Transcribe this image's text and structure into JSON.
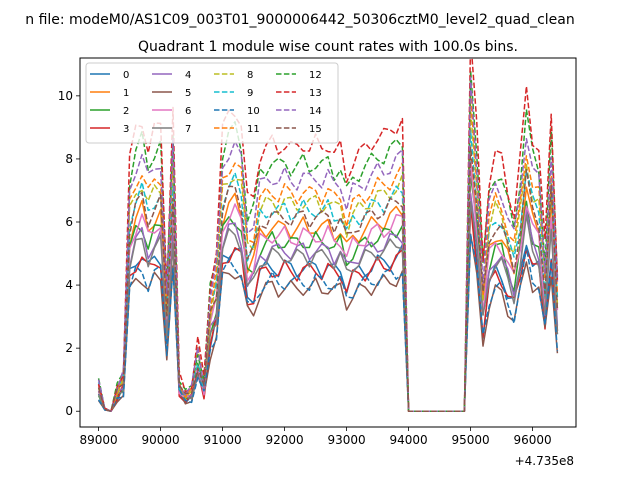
{
  "figure": {
    "suptitle": "n file: modeM0/AS1C09_003T01_9000006442_50306cztM0_level2_quad_clean",
    "offset_text": "+4.735e8"
  },
  "chart_data": {
    "type": "line",
    "title": "Quadrant 1 module wise count rates with 100.0s bins.",
    "xlabel": "",
    "ylabel": "",
    "xlim": [
      88700,
      96700
    ],
    "ylim": [
      -0.5,
      11.2
    ],
    "x_offset": 473500000,
    "x_ticks": [
      89000,
      90000,
      91000,
      92000,
      93000,
      94000,
      95000,
      96000
    ],
    "x_tick_labels": [
      "89000",
      "90000",
      "91000",
      "92000",
      "93000",
      "94000",
      "95000",
      "96000"
    ],
    "y_ticks": [
      0,
      2,
      4,
      6,
      8,
      10
    ],
    "y_tick_labels": [
      "0",
      "2",
      "4",
      "6",
      "8",
      "10"
    ],
    "grid": false,
    "legend_placement": "top-left",
    "legend_columns": 4,
    "x": [
      89000,
      89100,
      89200,
      89300,
      89400,
      89500,
      89600,
      89700,
      89800,
      89900,
      90000,
      90100,
      90200,
      90300,
      90400,
      90500,
      90600,
      90700,
      90800,
      90900,
      91000,
      91100,
      91200,
      91300,
      91400,
      91500,
      91600,
      91700,
      91800,
      91900,
      92000,
      92100,
      92200,
      92300,
      92400,
      92500,
      92600,
      92700,
      92800,
      92900,
      93000,
      93100,
      93200,
      93300,
      93400,
      93500,
      93600,
      93700,
      93800,
      93900,
      94000,
      94100,
      94200,
      94300,
      94400,
      94500,
      94600,
      94700,
      94800,
      94900,
      95000,
      95100,
      95200,
      95300,
      95400,
      95500,
      95600,
      95700,
      95800,
      95900,
      96000,
      96100,
      96200,
      96300,
      96400
    ],
    "base_profile": [
      0.55,
      0.05,
      0.0,
      0.45,
      0.7,
      4.3,
      4.8,
      5.0,
      4.5,
      4.8,
      4.9,
      2.2,
      5.2,
      0.6,
      0.35,
      0.45,
      1.2,
      0.55,
      2.2,
      2.8,
      4.8,
      5.1,
      5.2,
      4.9,
      3.6,
      3.7,
      4.4,
      4.5,
      4.6,
      4.5,
      4.6,
      4.5,
      4.5,
      4.6,
      4.5,
      4.6,
      4.5,
      4.6,
      4.4,
      4.5,
      4.0,
      4.3,
      4.4,
      4.5,
      4.6,
      4.7,
      4.7,
      4.8,
      4.9,
      5.0,
      0.0,
      0.0,
      0.0,
      0.0,
      0.0,
      0.0,
      0.0,
      0.0,
      0.0,
      0.0,
      6.4,
      4.8,
      2.6,
      4.0,
      4.4,
      4.3,
      3.8,
      3.4,
      4.3,
      5.5,
      4.7,
      4.5,
      2.8,
      5.1,
      2.4
    ],
    "series": [
      {
        "name": "0",
        "scale": 1.0,
        "color": "#1f77b4",
        "dashed": false
      },
      {
        "name": "1",
        "scale": 1.28,
        "color": "#ff7f0e",
        "dashed": false
      },
      {
        "name": "2",
        "scale": 1.18,
        "color": "#2ca02c",
        "dashed": false
      },
      {
        "name": "3",
        "scale": 0.98,
        "color": "#d62728",
        "dashed": false
      },
      {
        "name": "4",
        "scale": 1.12,
        "color": "#9467bd",
        "dashed": false
      },
      {
        "name": "5",
        "scale": 0.86,
        "color": "#8c564b",
        "dashed": false
      },
      {
        "name": "6",
        "scale": 1.22,
        "color": "#e377c2",
        "dashed": false
      },
      {
        "name": "7",
        "scale": 1.08,
        "color": "#7f7f7f",
        "dashed": false
      },
      {
        "name": "8",
        "scale": 1.45,
        "color": "#bcbd22",
        "dashed": true
      },
      {
        "name": "9",
        "scale": 1.4,
        "color": "#17becf",
        "dashed": true
      },
      {
        "name": "10",
        "scale": 0.9,
        "color": "#1f77b4",
        "dashed": true
      },
      {
        "name": "11",
        "scale": 1.52,
        "color": "#ff7f0e",
        "dashed": true
      },
      {
        "name": "12",
        "scale": 1.72,
        "color": "#2ca02c",
        "dashed": true
      },
      {
        "name": "13",
        "scale": 1.85,
        "color": "#d62728",
        "dashed": true
      },
      {
        "name": "14",
        "scale": 1.62,
        "color": "#9467bd",
        "dashed": true
      },
      {
        "name": "15",
        "scale": 1.35,
        "color": "#8c564b",
        "dashed": true
      }
    ]
  }
}
